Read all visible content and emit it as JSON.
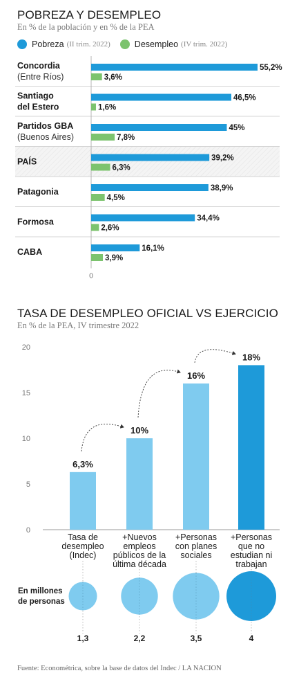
{
  "chart1": {
    "title": "POBREZA Y DESEMPLEO",
    "subtitle": "En % de la población y en % de la PEA",
    "legend": [
      {
        "label": "Pobreza",
        "note": "(II trim. 2022)",
        "color": "#1e9ad9"
      },
      {
        "label": "Desempleo",
        "note": "(IV trim. 2022)",
        "color": "#7cc36e"
      }
    ],
    "axis_zero_label": "0"
  },
  "chart2": {
    "title": "TASA DE DESEMPLEO OFICIAL VS EJERCICIO",
    "subtitle": "En % de la PEA, IV trimestre 2022",
    "bubbles_label_line1": "En millones",
    "bubbles_label_line2": "de personas"
  },
  "chart_data": [
    {
      "type": "bar",
      "orientation": "horizontal",
      "title": "POBREZA Y DESEMPLEO",
      "subtitle": "En % de la población y en % de la PEA",
      "categories": [
        {
          "line1": "Concordia",
          "line2": "(Entre Ríos)",
          "bold2": false
        },
        {
          "line1": "Santiago",
          "line2": "del Estero",
          "bold2": true
        },
        {
          "line1": "Partidos GBA",
          "line2": "(Buenos Aires)",
          "bold2": false
        },
        {
          "line1": "PAÍS",
          "line2": "",
          "bold2": false,
          "highlight": true
        },
        {
          "line1": "Patagonia",
          "line2": "",
          "bold2": false
        },
        {
          "line1": "Formosa",
          "line2": "",
          "bold2": false
        },
        {
          "line1": "CABA",
          "line2": "",
          "bold2": false
        }
      ],
      "series": [
        {
          "name": "Pobreza",
          "color": "#1e9ad9",
          "values": [
            55.2,
            46.5,
            45,
            39.2,
            38.9,
            34.4,
            16.1
          ],
          "labels": [
            "55,2%",
            "46,5%",
            "45%",
            "39,2%",
            "38,9%",
            "34,4%",
            "16,1%"
          ]
        },
        {
          "name": "Desempleo",
          "color": "#7cc36e",
          "values": [
            3.6,
            1.6,
            7.8,
            6.3,
            4.5,
            2.6,
            3.9
          ],
          "labels": [
            "3,6%",
            "1,6%",
            "7,8%",
            "6,3%",
            "4,5%",
            "2,6%",
            "3,9%"
          ]
        }
      ],
      "xlim": [
        0,
        55.2
      ],
      "ticks": [
        "0"
      ]
    },
    {
      "type": "bar",
      "title": "TASA DE DESEMPLEO OFICIAL VS EJERCICIO",
      "subtitle": "En % de la PEA, IV trimestre 2022",
      "categories": [
        [
          "Tasa de",
          "desempleo",
          "(Indec)"
        ],
        [
          "+Nuevos",
          "empleos",
          "públicos de la",
          "última década"
        ],
        [
          "+Personas",
          "con planes",
          "sociales"
        ],
        [
          "+Personas",
          "que no",
          "estudian ni",
          "trabajan"
        ]
      ],
      "values": [
        6.3,
        10,
        16,
        18
      ],
      "value_labels": [
        "6,3%",
        "10%",
        "16%",
        "18%"
      ],
      "colors": [
        "#7fcbef",
        "#7fcbef",
        "#7fcbef",
        "#1e9ad9"
      ],
      "ylim": [
        0,
        20
      ],
      "yticks": [
        0,
        5,
        10,
        15,
        20
      ],
      "bubbles": {
        "values": [
          1.3,
          2.2,
          3.5,
          4
        ],
        "labels": [
          "1,3",
          "2,2",
          "3,5",
          "4"
        ],
        "colors": [
          "#7fcbef",
          "#7fcbef",
          "#7fcbef",
          "#1e9ad9"
        ]
      }
    }
  ],
  "source": "Fuente: Econométrica, sobre la base de datos del Indec / LA NACION"
}
